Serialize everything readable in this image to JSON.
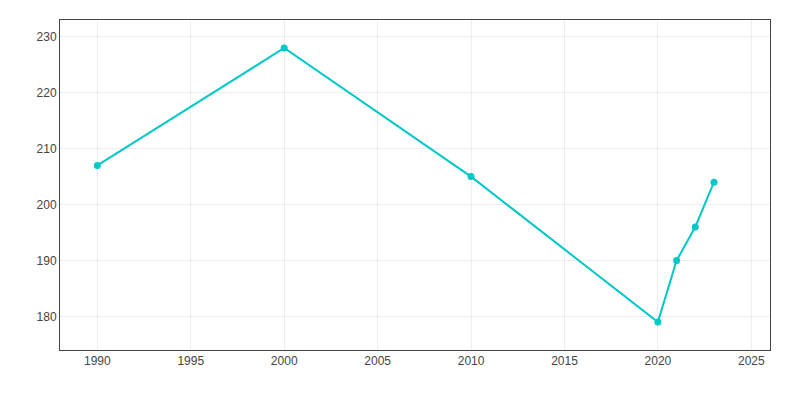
{
  "chart_data": {
    "type": "line",
    "x": [
      1990,
      2000,
      2010,
      2020,
      2021,
      2022,
      2023
    ],
    "values": [
      207,
      228,
      205,
      179,
      190,
      196,
      204
    ],
    "color": "#00C8C8",
    "marker": "circle",
    "xlim": [
      1988,
      2026
    ],
    "xticks": [
      1990,
      1995,
      2000,
      2005,
      2010,
      2015,
      2020,
      2025
    ],
    "ylim": [
      174,
      233
    ],
    "yticks": [
      180,
      190,
      200,
      210,
      220,
      230
    ],
    "grid": true
  }
}
